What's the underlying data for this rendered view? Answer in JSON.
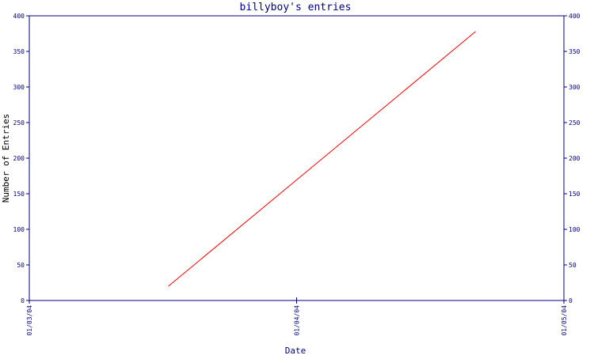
{
  "chart_data": {
    "type": "line",
    "title": "billyboy's entries",
    "xlabel": "Date",
    "ylabel": "Number of Entries",
    "x_ticks": [
      "01/03/04",
      "01/04/04",
      "01/05/04"
    ],
    "y_ticks": [
      0,
      50,
      100,
      150,
      200,
      250,
      300,
      350,
      400
    ],
    "ylim": [
      0,
      400
    ],
    "xlim": [
      "01/03/04",
      "01/05/04"
    ],
    "right_axis_mirrored": true,
    "grid": false,
    "legend": "none",
    "series": [
      {
        "x": [
          "01/03/04",
          "01/05/04"
        ],
        "x_fraction_of_range": [
          0.26,
          0.835
        ],
        "values": [
          20,
          378
        ],
        "color": "#ff0000"
      }
    ],
    "colors": {
      "axis": "#000080",
      "title": "#000080",
      "line": "#ff0000",
      "ylabel": "#000000"
    }
  }
}
